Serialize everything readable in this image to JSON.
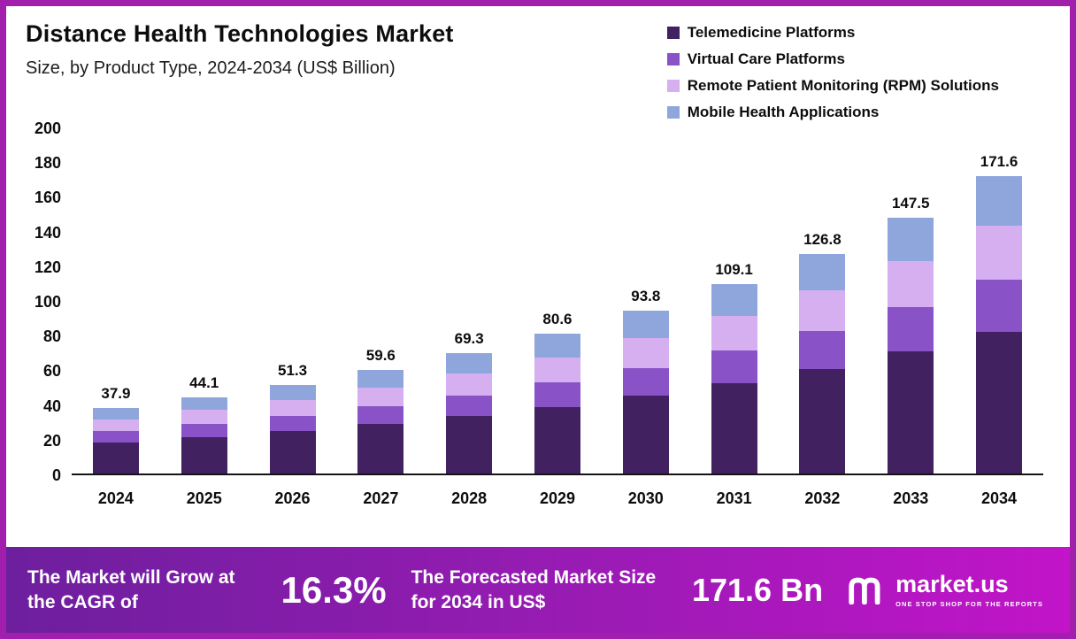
{
  "title": "Distance Health Technologies Market",
  "subtitle": "Size, by Product Type, 2024-2034 (US$ Billion)",
  "chart_data": {
    "type": "bar",
    "stacked": true,
    "title": "Distance Health Technologies Market Size, by Product Type, 2024-2034 (US$ Billion)",
    "categories": [
      "2024",
      "2025",
      "2026",
      "2027",
      "2028",
      "2029",
      "2030",
      "2031",
      "2032",
      "2033",
      "2034"
    ],
    "series": [
      {
        "name": "Telemedicine Platforms",
        "color": "#41215f",
        "values": [
          18.0,
          21.0,
          24.4,
          28.4,
          33.0,
          38.4,
          44.7,
          52.0,
          60.4,
          70.3,
          81.8
        ]
      },
      {
        "name": "Virtual Care Platforms",
        "color": "#8a52c7",
        "values": [
          6.5,
          7.6,
          8.9,
          10.3,
          12.0,
          14.0,
          16.3,
          19.0,
          22.0,
          25.6,
          29.8
        ]
      },
      {
        "name": "Remote Patient Monitoring (RPM) Solutions",
        "color": "#d5aff0",
        "values": [
          6.9,
          8.0,
          9.3,
          10.8,
          12.6,
          14.6,
          17.0,
          19.8,
          23.0,
          26.7,
          31.1
        ]
      },
      {
        "name": "Mobile Health Applications",
        "color": "#8fa6dc",
        "values": [
          6.5,
          7.5,
          8.7,
          10.1,
          11.7,
          13.6,
          15.8,
          18.3,
          21.4,
          24.9,
          28.9
        ]
      }
    ],
    "totals": [
      "37.9",
      "44.1",
      "51.3",
      "59.6",
      "69.3",
      "80.6",
      "93.8",
      "109.1",
      "126.8",
      "147.5",
      "171.6"
    ],
    "ylim": [
      0,
      200
    ],
    "ytick_step": 20,
    "grid": false,
    "legend_position": "top-right"
  },
  "footer": {
    "cagr_label": "The Market will Grow at the CAGR of",
    "cagr_value": "16.3%",
    "forecast_label": "The Forecasted Market Size for 2034 in US$",
    "forecast_value": "171.6 Bn",
    "brand": "market.us",
    "brand_tagline": "ONE STOP SHOP FOR THE REPORTS"
  }
}
